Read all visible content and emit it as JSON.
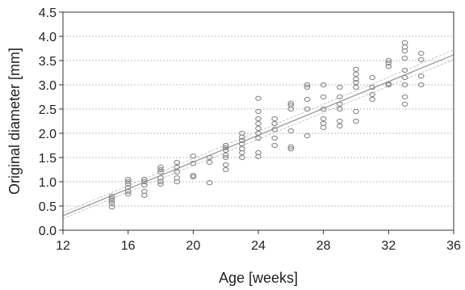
{
  "chart_data": {
    "type": "scatter",
    "title": "",
    "xlabel": "Age [weeks]",
    "ylabel": "Original diameter [mm]",
    "xlim": [
      12,
      36
    ],
    "ylim": [
      0.0,
      4.5
    ],
    "x_ticks": [
      12,
      16,
      20,
      24,
      28,
      32,
      36
    ],
    "x_tick_labels": [
      "12",
      "16",
      "20",
      "24",
      "28",
      "32",
      "36"
    ],
    "y_ticks": [
      0.0,
      0.5,
      1.0,
      1.5,
      2.0,
      2.5,
      3.0,
      3.5,
      4.0,
      4.5
    ],
    "y_tick_labels": [
      "0.0",
      "0.5",
      "1.0",
      "1.5",
      "2.0",
      "2.5",
      "3.0",
      "3.5",
      "4.0",
      "4.5"
    ],
    "grid": "horizontal",
    "marker_color": "#888888",
    "fit_line_color": "#9a9a9a",
    "ci_line_color": "#c4c4c4",
    "points": [
      [
        15,
        0.48
      ],
      [
        15,
        0.55
      ],
      [
        15,
        0.6
      ],
      [
        15,
        0.65
      ],
      [
        15,
        0.7
      ],
      [
        16,
        0.75
      ],
      [
        16,
        0.8
      ],
      [
        16,
        0.88
      ],
      [
        16,
        0.95
      ],
      [
        16,
        1.0
      ],
      [
        16,
        1.05
      ],
      [
        17,
        0.72
      ],
      [
        17,
        0.8
      ],
      [
        17,
        0.93
      ],
      [
        17,
        1.0
      ],
      [
        17,
        1.05
      ],
      [
        18,
        0.95
      ],
      [
        18,
        1.0
      ],
      [
        18,
        1.08
      ],
      [
        18,
        1.2
      ],
      [
        18,
        1.25
      ],
      [
        18,
        1.3
      ],
      [
        19,
        1.0
      ],
      [
        19,
        1.08
      ],
      [
        19,
        1.2
      ],
      [
        19,
        1.3
      ],
      [
        19,
        1.4
      ],
      [
        20,
        1.1
      ],
      [
        20,
        1.13
      ],
      [
        20,
        1.38
      ],
      [
        20,
        1.53
      ],
      [
        21,
        0.98
      ],
      [
        21,
        1.4
      ],
      [
        21,
        1.5
      ],
      [
        22,
        1.25
      ],
      [
        22,
        1.35
      ],
      [
        22,
        1.5
      ],
      [
        22,
        1.55
      ],
      [
        22,
        1.65
      ],
      [
        22,
        1.7
      ],
      [
        22,
        1.75
      ],
      [
        23,
        1.5
      ],
      [
        23,
        1.6
      ],
      [
        23,
        1.68
      ],
      [
        23,
        1.78
      ],
      [
        23,
        1.85
      ],
      [
        23,
        1.92
      ],
      [
        23,
        2.0
      ],
      [
        24,
        1.52
      ],
      [
        24,
        1.6
      ],
      [
        24,
        1.9
      ],
      [
        24,
        2.0
      ],
      [
        24,
        2.1
      ],
      [
        24,
        2.2
      ],
      [
        24,
        2.3
      ],
      [
        24,
        2.45
      ],
      [
        24,
        2.72
      ],
      [
        25,
        1.75
      ],
      [
        25,
        1.9
      ],
      [
        25,
        2.08
      ],
      [
        25,
        2.2
      ],
      [
        25,
        2.3
      ],
      [
        26,
        1.68
      ],
      [
        26,
        1.72
      ],
      [
        26,
        2.05
      ],
      [
        26,
        2.5
      ],
      [
        26,
        2.58
      ],
      [
        26,
        2.62
      ],
      [
        27,
        1.95
      ],
      [
        27,
        2.5
      ],
      [
        27,
        2.7
      ],
      [
        27,
        2.95
      ],
      [
        27,
        3.0
      ],
      [
        28,
        2.12
      ],
      [
        28,
        2.2
      ],
      [
        28,
        2.3
      ],
      [
        28,
        2.5
      ],
      [
        28,
        2.75
      ],
      [
        28,
        3.0
      ],
      [
        29,
        2.15
      ],
      [
        29,
        2.25
      ],
      [
        29,
        2.5
      ],
      [
        29,
        2.6
      ],
      [
        29,
        2.75
      ],
      [
        29,
        2.95
      ],
      [
        30,
        2.25
      ],
      [
        30,
        2.45
      ],
      [
        30,
        2.95
      ],
      [
        30,
        3.05
      ],
      [
        30,
        3.12
      ],
      [
        30,
        3.22
      ],
      [
        30,
        3.32
      ],
      [
        31,
        2.7
      ],
      [
        31,
        2.8
      ],
      [
        31,
        2.95
      ],
      [
        31,
        3.15
      ],
      [
        32,
        3.0
      ],
      [
        32,
        3.02
      ],
      [
        32,
        3.38
      ],
      [
        32,
        3.45
      ],
      [
        32,
        3.5
      ],
      [
        33,
        2.6
      ],
      [
        33,
        2.75
      ],
      [
        33,
        3.0
      ],
      [
        33,
        3.15
      ],
      [
        33,
        3.3
      ],
      [
        33,
        3.55
      ],
      [
        33,
        3.7
      ],
      [
        33,
        3.78
      ],
      [
        33,
        3.87
      ],
      [
        34,
        3.0
      ],
      [
        34,
        3.18
      ],
      [
        34,
        3.52
      ],
      [
        34,
        3.65
      ]
    ],
    "fit_line": [
      [
        12,
        0.3
      ],
      [
        36,
        3.62
      ]
    ],
    "ci_upper": [
      [
        12,
        0.36
      ],
      [
        36,
        3.72
      ]
    ],
    "ci_lower": [
      [
        12,
        0.24
      ],
      [
        36,
        3.52
      ]
    ]
  }
}
